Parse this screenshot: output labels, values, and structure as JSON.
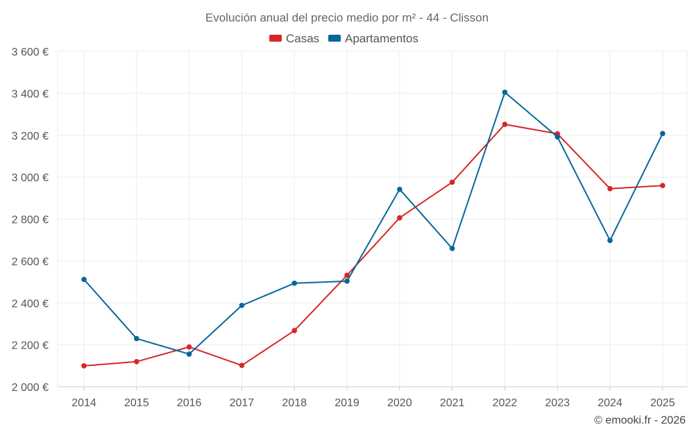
{
  "chart_data": {
    "type": "line",
    "title": "Evolución anual del precio medio por m² - 44 - Clisson",
    "categories": [
      "2014",
      "2015",
      "2016",
      "2017",
      "2018",
      "2019",
      "2020",
      "2021",
      "2022",
      "2023",
      "2024",
      "2025"
    ],
    "series": [
      {
        "name": "Casas",
        "color": "#d62728",
        "values": [
          2100,
          2120,
          2190,
          2102,
          2268,
          2532,
          2806,
          2976,
          3252,
          3207,
          2945,
          2960
        ]
      },
      {
        "name": "Apartamentos",
        "color": "#08679a",
        "values": [
          2512,
          2230,
          2156,
          2388,
          2494,
          2504,
          2942,
          2660,
          3405,
          3192,
          2698,
          3208
        ]
      }
    ],
    "ylim": [
      2000,
      3600
    ],
    "yticks": [
      2000,
      2200,
      2400,
      2600,
      2800,
      3000,
      3200,
      3400,
      3600
    ],
    "ytick_labels": [
      "2 000 €",
      "2 200 €",
      "2 400 €",
      "2 600 €",
      "2 800 €",
      "3 000 €",
      "3 200 €",
      "3 400 €",
      "3 600 €"
    ],
    "xlabel": "",
    "ylabel": "",
    "grid": true,
    "legend": "top-center"
  },
  "credit": "© emooki.fr - 2026"
}
